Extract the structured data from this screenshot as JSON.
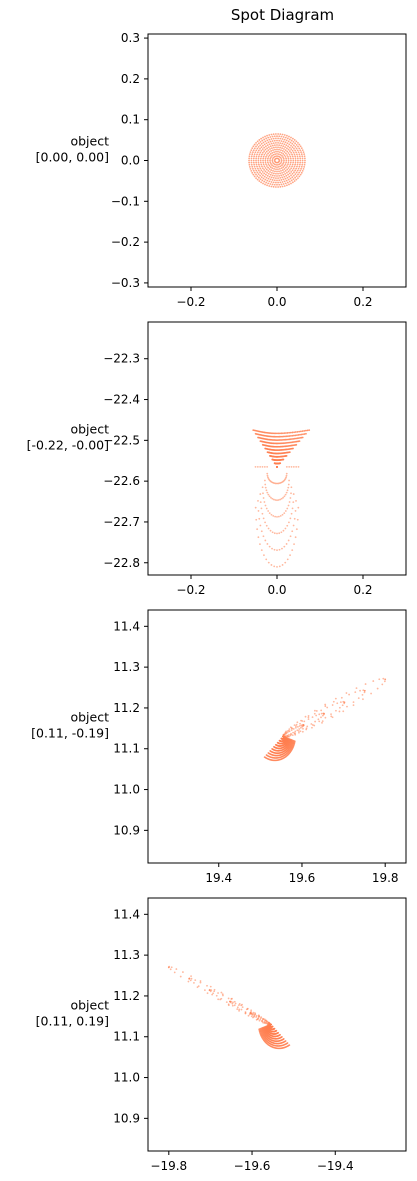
{
  "title": "Spot Diagram",
  "colors": {
    "points": "#ff7f50",
    "axes": "#000000",
    "background": "#ffffff"
  },
  "chart_data": [
    {
      "type": "scatter",
      "row_label": [
        "object",
        "[0.00, 0.00]"
      ],
      "xlim": [
        -0.3,
        0.3
      ],
      "ylim": [
        -0.31,
        0.31
      ],
      "xticks": [
        -0.2,
        0.0,
        0.2
      ],
      "xtick_labels": [
        "−0.2",
        "0.0",
        "0.2"
      ],
      "yticks": [
        -0.3,
        -0.2,
        -0.1,
        0.0,
        0.1,
        0.2,
        0.3
      ],
      "ytick_labels": [
        "−0.3",
        "−0.2",
        "−0.1",
        "0.0",
        "0.1",
        "0.2",
        "0.3"
      ],
      "spot": {
        "shape": "disk",
        "center": [
          0.0,
          0.0
        ],
        "radius": 0.065
      }
    },
    {
      "type": "scatter",
      "row_label": [
        "object",
        "[-0.22, -0.00]"
      ],
      "xlim": [
        -0.3,
        0.3
      ],
      "ylim": [
        -22.83,
        -22.21
      ],
      "xticks": [
        -0.2,
        0.0,
        0.2
      ],
      "xtick_labels": [
        "−0.2",
        "0.0",
        "0.2"
      ],
      "yticks": [
        -22.3,
        -22.4,
        -22.5,
        -22.6,
        -22.7,
        -22.8
      ],
      "ytick_labels": [
        "−22.3",
        "−22.4",
        "−22.5",
        "−22.6",
        "−22.7",
        "−22.8"
      ],
      "spot": {
        "shape": "fan-down",
        "apex": [
          0.0,
          -22.565
        ],
        "top": -22.475,
        "half_width": 0.065,
        "tail_end": -22.81,
        "tail_width": 0.05
      }
    },
    {
      "type": "scatter",
      "row_label": [
        "object",
        "[0.11, -0.19]"
      ],
      "xlim": [
        19.23,
        19.85
      ],
      "ylim": [
        10.82,
        11.44
      ],
      "xticks": [
        19.4,
        19.6,
        19.8
      ],
      "xtick_labels": [
        "19.4",
        "19.6",
        "19.8"
      ],
      "yticks": [
        10.9,
        11.0,
        11.1,
        11.2,
        11.3,
        11.4
      ],
      "ytick_labels": [
        "10.9",
        "11.0",
        "11.1",
        "11.2",
        "11.3",
        "11.4"
      ],
      "spot": {
        "shape": "fan-diag",
        "apex": [
          19.555,
          11.13
        ],
        "blade_center": [
          19.51,
          11.11
        ],
        "tail_end": [
          19.8,
          11.27
        ],
        "dir": 1
      }
    },
    {
      "type": "scatter",
      "row_label": [
        "object",
        "[0.11, 0.19]"
      ],
      "xlim": [
        -19.85,
        -19.23
      ],
      "ylim": [
        10.82,
        11.44
      ],
      "xticks": [
        -19.8,
        -19.6,
        -19.4
      ],
      "xtick_labels": [
        "−19.8",
        "−19.6",
        "−19.4"
      ],
      "yticks": [
        10.9,
        11.0,
        11.1,
        11.2,
        11.3,
        11.4
      ],
      "ytick_labels": [
        "10.9",
        "11.0",
        "11.1",
        "11.2",
        "11.3",
        "11.4"
      ],
      "spot": {
        "shape": "fan-diag",
        "apex": [
          -19.555,
          11.13
        ],
        "blade_center": [
          -19.51,
          11.11
        ],
        "tail_end": [
          -19.8,
          11.27
        ],
        "dir": -1
      }
    }
  ]
}
